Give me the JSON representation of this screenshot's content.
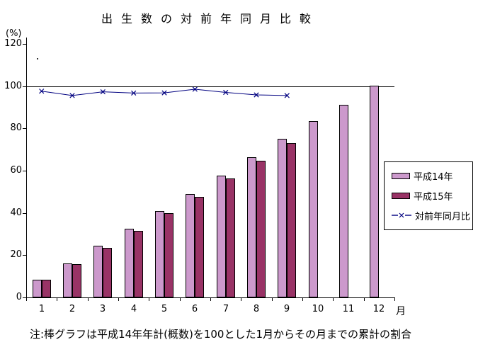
{
  "title": "出生数の対前年同月比較",
  "y_axis": {
    "unit_label": "(%)",
    "ticks": [
      0,
      20,
      40,
      60,
      80,
      100,
      120
    ]
  },
  "x_axis": {
    "unit_label": "月"
  },
  "note": "注:棒グラフは平成14年年計(概数)を100とした1月からその月までの累計の割合",
  "legend": {
    "items": [
      {
        "label": "平成14年",
        "swatch": "bar",
        "color": "#CC99CC"
      },
      {
        "label": "平成15年",
        "swatch": "bar",
        "color": "#993366"
      },
      {
        "label": "対前年同月比",
        "swatch": "line",
        "color": "#000080"
      }
    ]
  },
  "chart_data": {
    "type": "bar",
    "title": "出生数の対前年同月比較",
    "categories": [
      "1",
      "2",
      "3",
      "4",
      "5",
      "6",
      "7",
      "8",
      "9",
      "10",
      "11",
      "12"
    ],
    "series": [
      {
        "name": "平成14年",
        "type": "bar",
        "color": "#CC99CC",
        "values": [
          8.4,
          16.1,
          24.4,
          32.5,
          41.0,
          48.9,
          57.7,
          66.3,
          75.0,
          83.4,
          91.1,
          100.0
        ]
      },
      {
        "name": "平成15年",
        "type": "bar",
        "color": "#993366",
        "values": [
          8.3,
          15.7,
          23.5,
          31.5,
          39.9,
          47.7,
          56.4,
          64.6,
          72.9,
          null,
          null,
          null
        ]
      },
      {
        "name": "対前年同月比",
        "type": "line",
        "color": "#000080",
        "marker": "x",
        "values": [
          97.6,
          95.5,
          97.3,
          96.7,
          96.8,
          98.5,
          97.0,
          95.8,
          95.5,
          null,
          null,
          null
        ]
      }
    ],
    "xlabel": "月",
    "ylabel": "(%)",
    "ylim": [
      0,
      120
    ],
    "reference_line": 100,
    "grid": false,
    "legend_position": "right-middle",
    "annotation": "注:棒グラフは平成14年年計(概数)を100とした1月からその月までの累計の割合"
  }
}
